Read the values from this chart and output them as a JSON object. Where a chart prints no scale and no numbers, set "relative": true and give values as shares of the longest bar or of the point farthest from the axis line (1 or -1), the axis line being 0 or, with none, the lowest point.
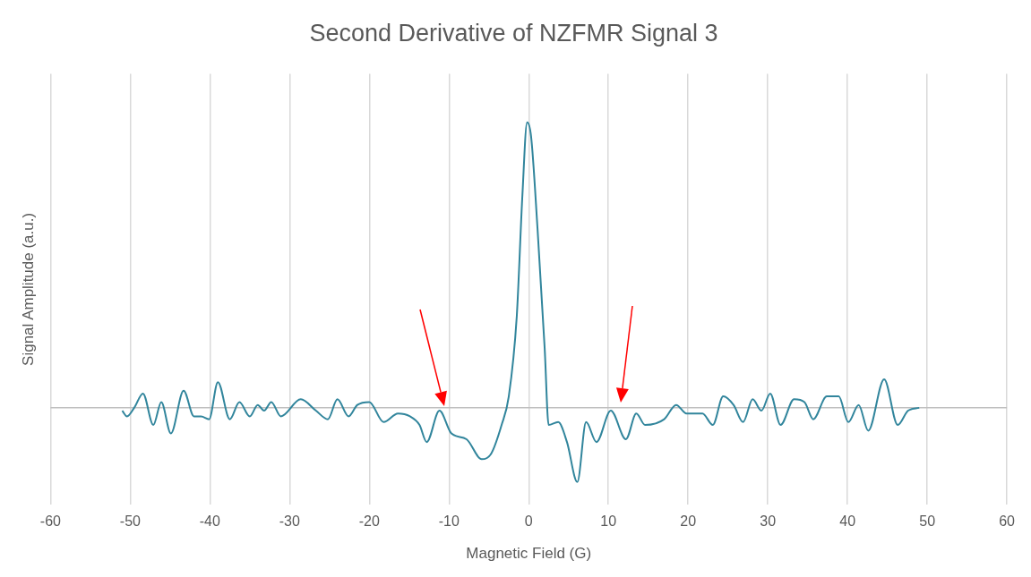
{
  "chart_data": {
    "type": "line",
    "title": "Second Derivative of NZFMR Signal 3",
    "xlabel": "Magnetic Field (G)",
    "ylabel": "Signal Amplitude (a.u.)",
    "relative": true,
    "grid": "x",
    "marker": "none",
    "xlim": [
      -60,
      60
    ],
    "xticks": [
      -60,
      -50,
      -40,
      -30,
      -20,
      -10,
      0,
      10,
      20,
      30,
      40,
      50,
      60
    ],
    "series": [
      {
        "color": "#31859c",
        "x": [
          -51.0,
          -50.4,
          -49.5,
          -48.4,
          -47.1,
          -46.1,
          -44.9,
          -43.3,
          -42.0,
          -41.1,
          -40.1,
          -39.0,
          -37.5,
          -36.3,
          -35.0,
          -34.0,
          -33.2,
          -32.3,
          -31.1,
          -28.6,
          -26.7,
          -25.2,
          -24.0,
          -22.6,
          -21.5,
          -20.0,
          -18.2,
          -16.4,
          -14.9,
          -13.7,
          -12.8,
          -11.2,
          -9.7,
          -7.8,
          -5.9,
          -4.7,
          -3.4,
          -2.5,
          -1.5,
          -0.8,
          -0.2,
          0.3,
          1.1,
          2.0,
          2.5,
          3.7,
          4.8,
          6.1,
          7.2,
          8.5,
          10.3,
          12.2,
          13.5,
          14.6,
          17.0,
          18.5,
          19.8,
          21.8,
          23.1,
          24.4,
          25.7,
          26.9,
          28.1,
          29.2,
          30.3,
          31.6,
          33.3,
          34.6,
          35.7,
          37.4,
          38.9,
          40.1,
          41.4,
          42.6,
          44.6,
          46.3,
          47.6,
          49.0
        ],
        "values": [
          -0.01,
          -0.03,
          0.0,
          0.05,
          -0.06,
          0.02,
          -0.09,
          0.06,
          -0.03,
          -0.03,
          -0.04,
          0.09,
          -0.04,
          0.02,
          -0.03,
          0.01,
          -0.01,
          0.02,
          -0.03,
          0.03,
          -0.01,
          -0.04,
          0.03,
          -0.03,
          0.01,
          0.02,
          -0.05,
          -0.02,
          -0.03,
          -0.06,
          -0.12,
          -0.01,
          -0.09,
          -0.11,
          -0.18,
          -0.16,
          -0.06,
          0.04,
          0.32,
          0.74,
          1.0,
          0.95,
          0.63,
          0.21,
          -0.06,
          -0.05,
          -0.12,
          -0.26,
          -0.05,
          -0.12,
          -0.01,
          -0.11,
          -0.02,
          -0.06,
          -0.04,
          0.01,
          -0.02,
          -0.02,
          -0.06,
          0.04,
          0.01,
          -0.05,
          0.03,
          -0.01,
          0.05,
          -0.06,
          0.03,
          0.02,
          -0.04,
          0.04,
          0.04,
          -0.05,
          0.01,
          -0.08,
          0.1,
          -0.06,
          -0.01,
          0.0
        ]
      }
    ]
  }
}
